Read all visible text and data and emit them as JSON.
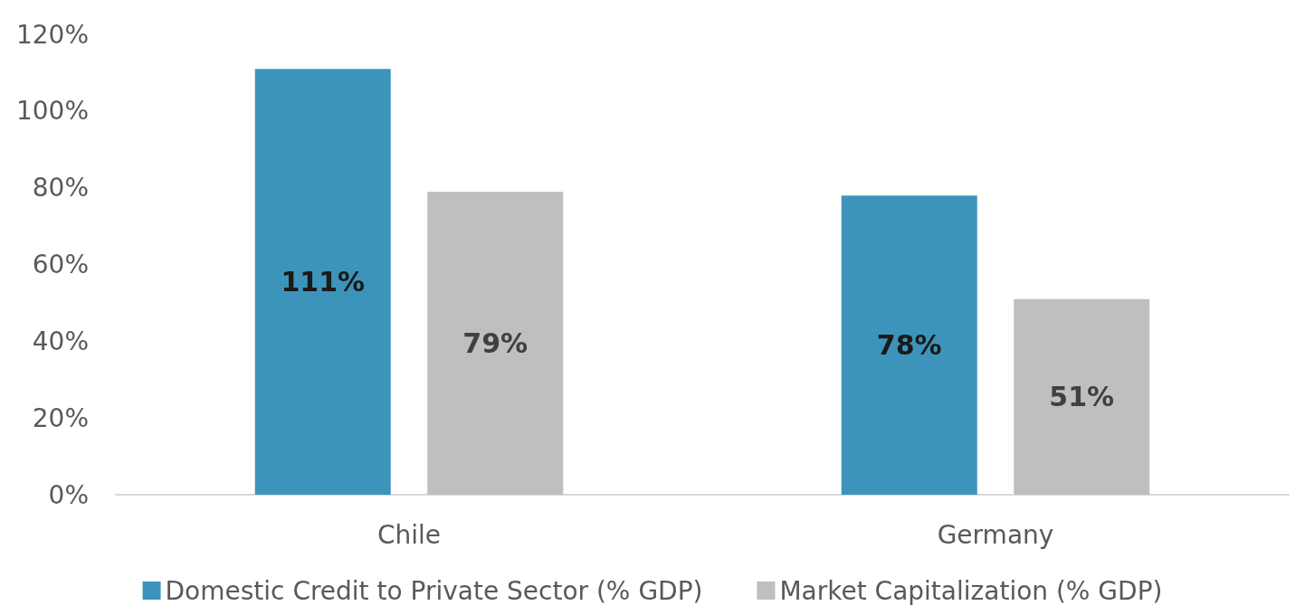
{
  "chart_data": {
    "type": "bar",
    "categories": [
      "Chile",
      "Germany"
    ],
    "series": [
      {
        "name": "Domestic Credit to Private Sector (% GDP)",
        "color": "#3d94bb",
        "values": [
          111,
          78
        ],
        "value_labels": [
          "111%",
          "78%"
        ]
      },
      {
        "name": "Market Capitalization (% GDP)",
        "color": "#bfbfbf",
        "values": [
          79,
          51
        ],
        "value_labels": [
          "79%",
          "51%"
        ]
      }
    ],
    "ylim": [
      0,
      120
    ],
    "yticks": [
      {
        "value": 0,
        "label": "0%"
      },
      {
        "value": 20,
        "label": "20%"
      },
      {
        "value": 40,
        "label": "40%"
      },
      {
        "value": 60,
        "label": "60%"
      },
      {
        "value": 80,
        "label": "80%"
      },
      {
        "value": 100,
        "label": "100%"
      },
      {
        "value": 120,
        "label": "120%"
      }
    ],
    "grid": false,
    "legend": "bottom"
  }
}
